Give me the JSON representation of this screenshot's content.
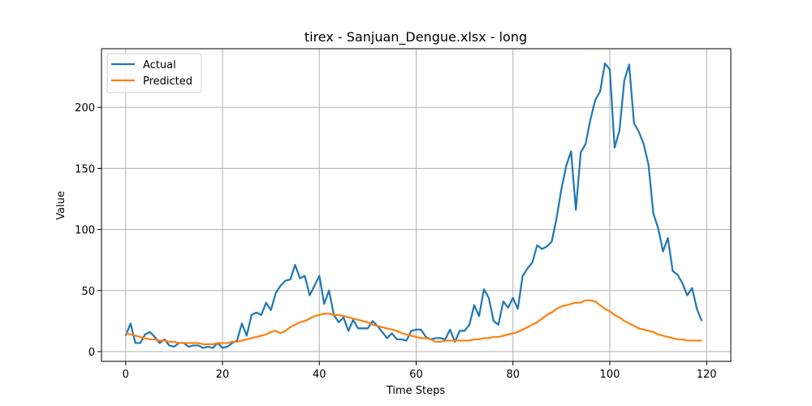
{
  "chart_data": {
    "type": "line",
    "title": "tirex - Sanjuan_Dengue.xlsx - long",
    "xlabel": "Time Steps",
    "ylabel": "Value",
    "xlim": [
      -5,
      125
    ],
    "ylim": [
      -8,
      248
    ],
    "xticks": [
      0,
      20,
      40,
      60,
      80,
      100,
      120
    ],
    "yticks": [
      0,
      50,
      100,
      150,
      200
    ],
    "grid": true,
    "legend_position": "top-left",
    "series": [
      {
        "name": "Actual",
        "color": "#1f77b4",
        "values": [
          13,
          23,
          7,
          7,
          14,
          16,
          12,
          7,
          10,
          5,
          4,
          7,
          7,
          4,
          5,
          5,
          3,
          4,
          3,
          7,
          3,
          4,
          7,
          9,
          23,
          13,
          30,
          32,
          30,
          40,
          34,
          48,
          54,
          58,
          59,
          71,
          60,
          62,
          46,
          54,
          62,
          39,
          50,
          30,
          24,
          28,
          17,
          26,
          19,
          19,
          19,
          25,
          21,
          16,
          11,
          15,
          10,
          10,
          9,
          17,
          18,
          18,
          12,
          10,
          11,
          11,
          10,
          18,
          8,
          17,
          17,
          22,
          38,
          29,
          51,
          44,
          25,
          22,
          41,
          36,
          44,
          35,
          62,
          68,
          73,
          87,
          84,
          86,
          90,
          109,
          133,
          152,
          164,
          116,
          163,
          170,
          190,
          206,
          213,
          236,
          231,
          167,
          181,
          222,
          235,
          187,
          180,
          170,
          153,
          113,
          101,
          82,
          93,
          66,
          63,
          56,
          46,
          52,
          35,
          25
        ]
      },
      {
        "name": "Predicted",
        "color": "#ff7f0e",
        "values": [
          15,
          14,
          13,
          12,
          11,
          10,
          10,
          9,
          9,
          8,
          8,
          7,
          7,
          7,
          7,
          7,
          6,
          6,
          6,
          7,
          7,
          7,
          8,
          8,
          9,
          10,
          11,
          12,
          13,
          14,
          16,
          17,
          15,
          17,
          20,
          22,
          24,
          25,
          27,
          29,
          30,
          31,
          31,
          30,
          30,
          29,
          28,
          27,
          26,
          25,
          24,
          22,
          21,
          20,
          19,
          18,
          17,
          15,
          14,
          13,
          12,
          11,
          11,
          10,
          8,
          8,
          9,
          9,
          9,
          9,
          9,
          9,
          10,
          10,
          11,
          11,
          12,
          12,
          13,
          14,
          15,
          16,
          18,
          20,
          22,
          24,
          27,
          30,
          32,
          35,
          37,
          38,
          39,
          40,
          40,
          42,
          42,
          41,
          38,
          35,
          33,
          30,
          28,
          25,
          23,
          21,
          19,
          18,
          17,
          16,
          14,
          13,
          12,
          11,
          10,
          10,
          9,
          9,
          9,
          9
        ]
      }
    ]
  }
}
